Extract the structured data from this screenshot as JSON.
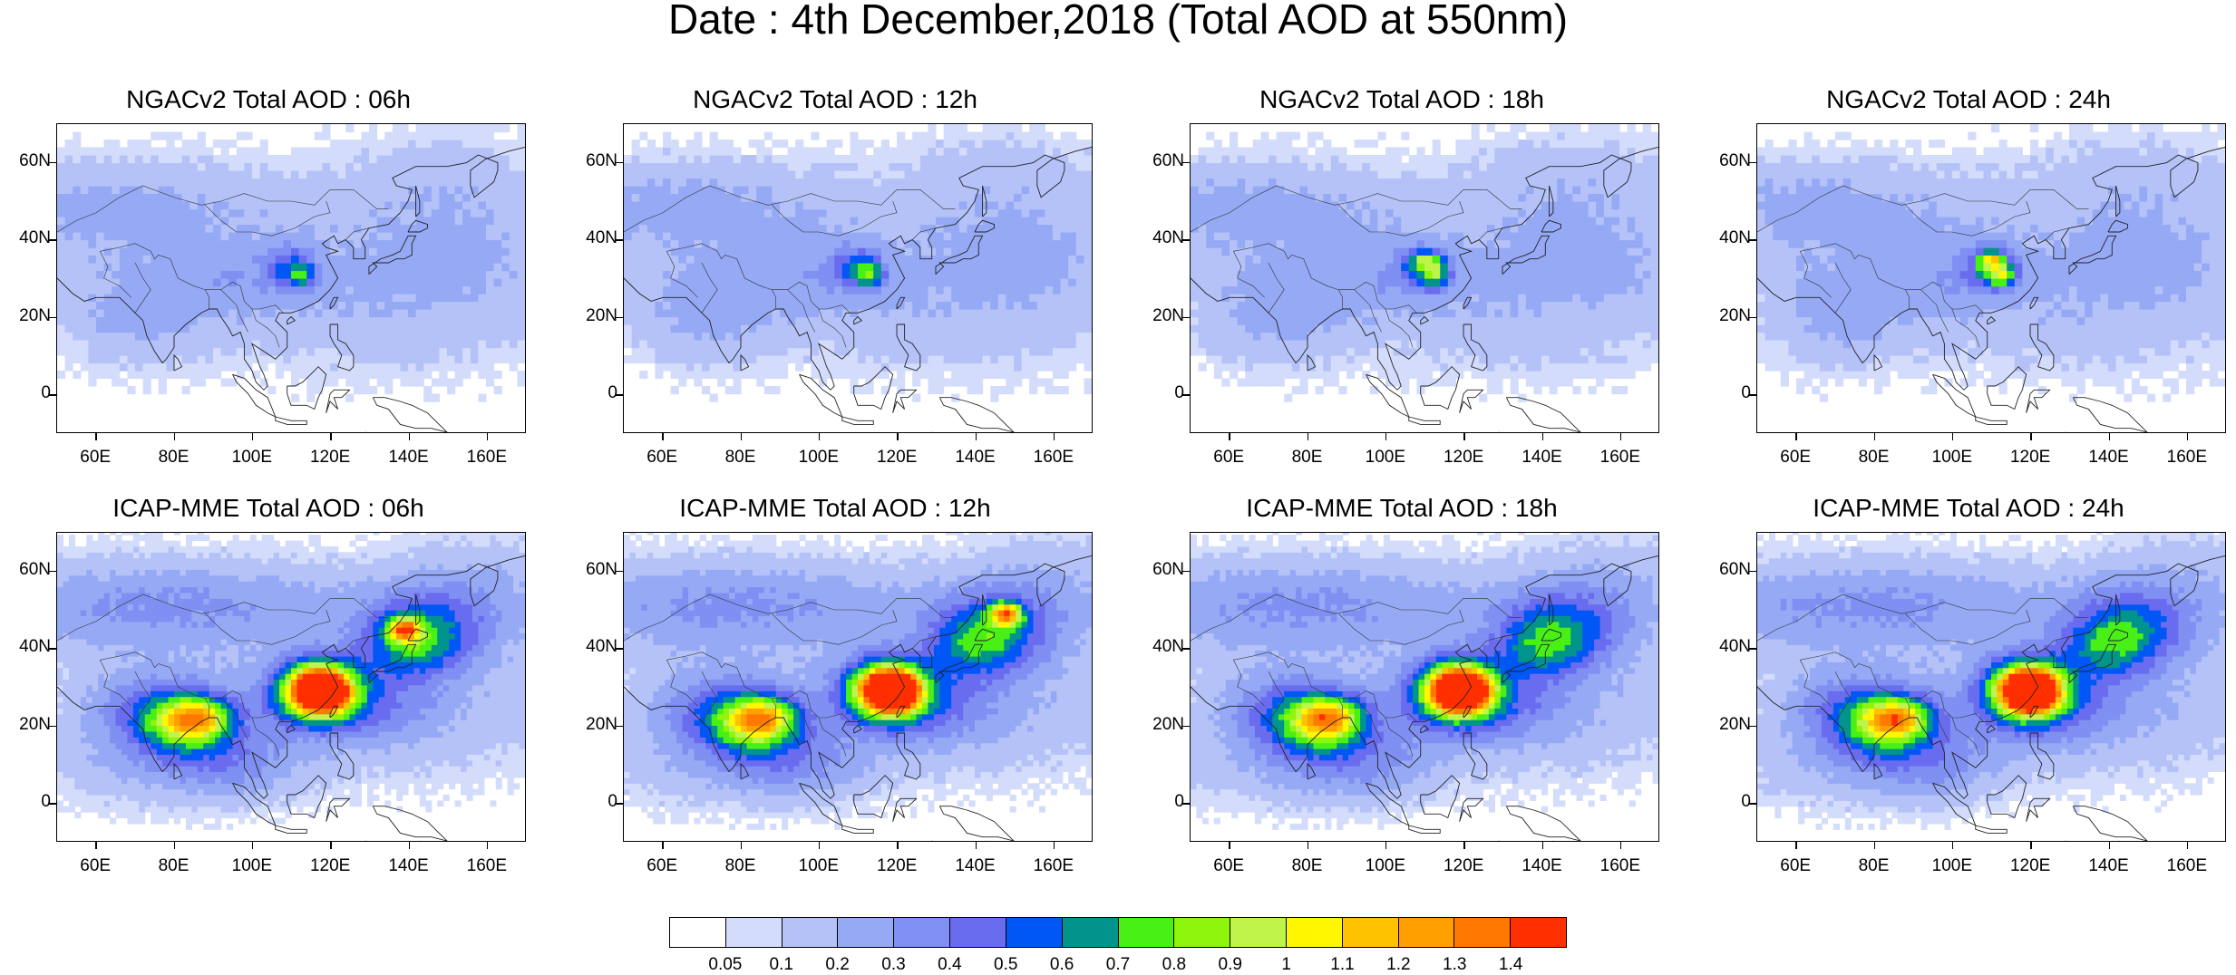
{
  "title": "Date : 4th December,2018 (Total AOD at 550nm)",
  "panels": [
    {
      "title": "NGACv2 Total AOD : 06h",
      "model": "NGACv2",
      "hour": "06h"
    },
    {
      "title": "NGACv2 Total AOD : 12h",
      "model": "NGACv2",
      "hour": "12h"
    },
    {
      "title": "NGACv2 Total AOD : 18h",
      "model": "NGACv2",
      "hour": "18h"
    },
    {
      "title": "NGACv2 Total AOD : 24h",
      "model": "NGACv2",
      "hour": "24h"
    },
    {
      "title": "ICAP-MME Total AOD : 06h",
      "model": "ICAP-MME",
      "hour": "06h"
    },
    {
      "title": "ICAP-MME Total AOD : 12h",
      "model": "ICAP-MME",
      "hour": "12h"
    },
    {
      "title": "ICAP-MME Total AOD : 18h",
      "model": "ICAP-MME",
      "hour": "18h"
    },
    {
      "title": "ICAP-MME Total AOD : 24h",
      "model": "ICAP-MME",
      "hour": "24h"
    }
  ],
  "axes": {
    "lat_labels": [
      "60N",
      "40N",
      "20N",
      "0"
    ],
    "lat_values": [
      60,
      40,
      20,
      0
    ],
    "lat_range": [
      -10,
      70
    ],
    "lon_labels": [
      "60E",
      "80E",
      "100E",
      "120E",
      "140E",
      "160E"
    ],
    "lon_values": [
      60,
      80,
      100,
      120,
      140,
      160
    ],
    "lon_range": [
      50,
      170
    ]
  },
  "colorbar": {
    "labels": [
      "0.05",
      "0.1",
      "0.2",
      "0.3",
      "0.4",
      "0.5",
      "0.6",
      "0.7",
      "0.8",
      "0.9",
      "1",
      "1.1",
      "1.2",
      "1.3",
      "1.4"
    ],
    "colors": [
      "#ffffff",
      "#d4dcfb",
      "#b4c2f8",
      "#96a9f5",
      "#7f8ff2",
      "#6a6cf0",
      "#0057f5",
      "#00948c",
      "#48f016",
      "#8ef50c",
      "#bff54a",
      "#fff700",
      "#ffc200",
      "#ff9f00",
      "#ff7900",
      "#ff2f00"
    ]
  }
}
